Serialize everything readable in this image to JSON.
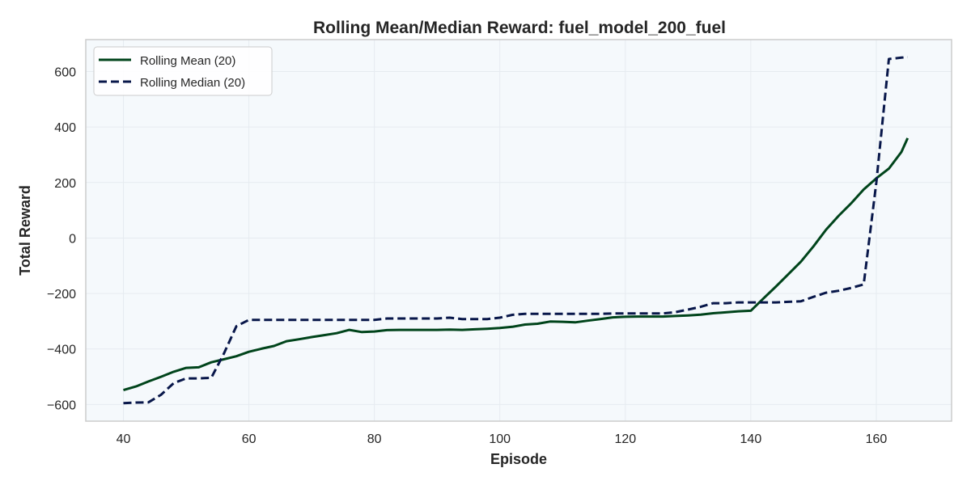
{
  "chart_data": {
    "type": "line",
    "title": "Rolling Mean/Median Reward: fuel_model_200_fuel",
    "xlabel": "Episode",
    "ylabel": "Total Reward",
    "xlim": [
      34,
      172
    ],
    "ylim": [
      -660,
      715
    ],
    "xticks": [
      40,
      60,
      80,
      100,
      120,
      140,
      160
    ],
    "yticks": [
      -600,
      -400,
      -200,
      0,
      200,
      400,
      600
    ],
    "xtick_labels": [
      "40",
      "60",
      "80",
      "100",
      "120",
      "140",
      "160"
    ],
    "ytick_labels": [
      "−600",
      "−400",
      "−200",
      "0",
      "200",
      "400",
      "600"
    ],
    "grid": true,
    "legend_position": "upper left",
    "colors": {
      "mean": "#00441b",
      "median": "#08174a",
      "plot_bg": "#f5f9fc",
      "grid": "#e6ebf0",
      "spine": "#cccccc"
    },
    "series": [
      {
        "name": "Rolling Mean (20)",
        "style": "solid",
        "points": [
          [
            40,
            -548
          ],
          [
            42,
            -535
          ],
          [
            44,
            -517
          ],
          [
            46,
            -500
          ],
          [
            48,
            -482
          ],
          [
            50,
            -468
          ],
          [
            52,
            -466
          ],
          [
            54,
            -448
          ],
          [
            56,
            -437
          ],
          [
            58,
            -426
          ],
          [
            60,
            -410
          ],
          [
            62,
            -399
          ],
          [
            64,
            -389
          ],
          [
            66,
            -372
          ],
          [
            68,
            -365
          ],
          [
            70,
            -357
          ],
          [
            72,
            -350
          ],
          [
            74,
            -343
          ],
          [
            76,
            -331
          ],
          [
            78,
            -339
          ],
          [
            80,
            -337
          ],
          [
            82,
            -332
          ],
          [
            84,
            -331
          ],
          [
            86,
            -331
          ],
          [
            88,
            -331
          ],
          [
            90,
            -331
          ],
          [
            92,
            -330
          ],
          [
            94,
            -331
          ],
          [
            96,
            -329
          ],
          [
            98,
            -327
          ],
          [
            100,
            -324
          ],
          [
            102,
            -320
          ],
          [
            104,
            -312
          ],
          [
            106,
            -309
          ],
          [
            108,
            -301
          ],
          [
            110,
            -302
          ],
          [
            112,
            -304
          ],
          [
            114,
            -298
          ],
          [
            116,
            -292
          ],
          [
            118,
            -286
          ],
          [
            120,
            -284
          ],
          [
            122,
            -283
          ],
          [
            124,
            -283
          ],
          [
            126,
            -283
          ],
          [
            128,
            -281
          ],
          [
            130,
            -279
          ],
          [
            132,
            -276
          ],
          [
            134,
            -271
          ],
          [
            136,
            -268
          ],
          [
            138,
            -264
          ],
          [
            140,
            -262
          ],
          [
            142,
            -218
          ],
          [
            144,
            -175
          ],
          [
            146,
            -130
          ],
          [
            148,
            -85
          ],
          [
            150,
            -30
          ],
          [
            152,
            30
          ],
          [
            154,
            80
          ],
          [
            156,
            125
          ],
          [
            158,
            175
          ],
          [
            160,
            215
          ],
          [
            162,
            250
          ],
          [
            164,
            310
          ],
          [
            165,
            360
          ]
        ]
      },
      {
        "name": "Rolling Median (20)",
        "style": "dashed",
        "points": [
          [
            40,
            -595
          ],
          [
            42,
            -593
          ],
          [
            44,
            -592
          ],
          [
            46,
            -565
          ],
          [
            48,
            -523
          ],
          [
            50,
            -506
          ],
          [
            52,
            -506
          ],
          [
            54,
            -504
          ],
          [
            56,
            -417
          ],
          [
            58,
            -318
          ],
          [
            60,
            -295
          ],
          [
            62,
            -295
          ],
          [
            64,
            -295
          ],
          [
            66,
            -295
          ],
          [
            68,
            -295
          ],
          [
            70,
            -295
          ],
          [
            72,
            -295
          ],
          [
            74,
            -295
          ],
          [
            76,
            -295
          ],
          [
            78,
            -295
          ],
          [
            80,
            -295
          ],
          [
            82,
            -290
          ],
          [
            84,
            -290
          ],
          [
            86,
            -290
          ],
          [
            88,
            -290
          ],
          [
            90,
            -290
          ],
          [
            92,
            -287
          ],
          [
            94,
            -292
          ],
          [
            96,
            -292
          ],
          [
            98,
            -292
          ],
          [
            100,
            -287
          ],
          [
            102,
            -277
          ],
          [
            104,
            -273
          ],
          [
            106,
            -273
          ],
          [
            108,
            -273
          ],
          [
            110,
            -273
          ],
          [
            112,
            -273
          ],
          [
            114,
            -273
          ],
          [
            116,
            -273
          ],
          [
            118,
            -272
          ],
          [
            120,
            -272
          ],
          [
            122,
            -272
          ],
          [
            124,
            -272
          ],
          [
            126,
            -272
          ],
          [
            128,
            -267
          ],
          [
            130,
            -258
          ],
          [
            132,
            -248
          ],
          [
            134,
            -235
          ],
          [
            136,
            -235
          ],
          [
            138,
            -232
          ],
          [
            140,
            -232
          ],
          [
            142,
            -232
          ],
          [
            144,
            -232
          ],
          [
            146,
            -230
          ],
          [
            148,
            -228
          ],
          [
            150,
            -212
          ],
          [
            152,
            -197
          ],
          [
            154,
            -190
          ],
          [
            156,
            -180
          ],
          [
            158,
            -167
          ],
          [
            160,
            200
          ],
          [
            162,
            645
          ],
          [
            164,
            650
          ],
          [
            165,
            652
          ]
        ]
      }
    ]
  }
}
